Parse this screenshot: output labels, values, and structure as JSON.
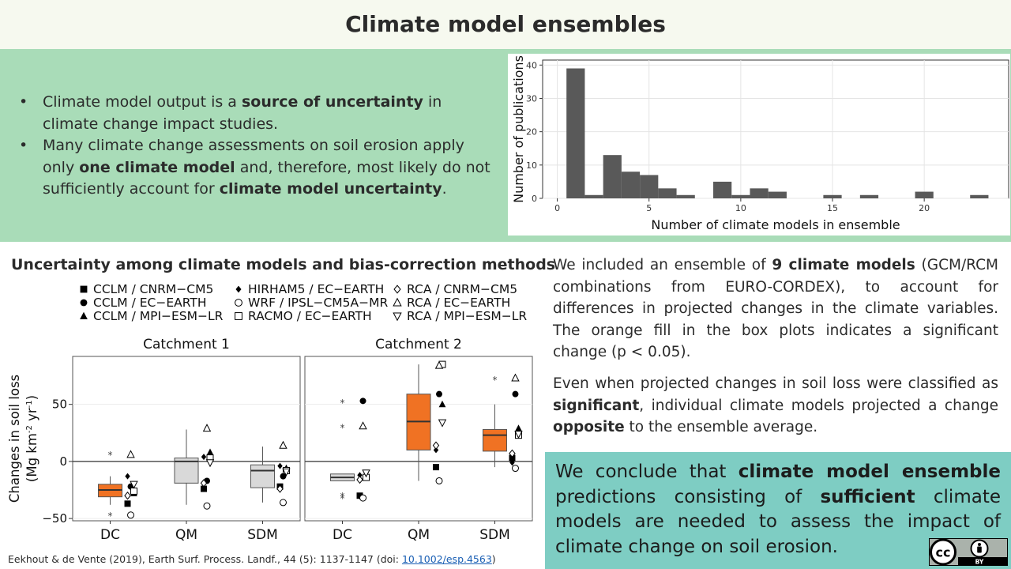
{
  "slide": {
    "title": "Climate model ensembles"
  },
  "intro": {
    "bullet1": [
      {
        "t": "Climate model output is a ",
        "b": false
      },
      {
        "t": "source of uncertainty",
        "b": true
      },
      {
        "t": " in climate change impact studies.",
        "b": false
      }
    ],
    "bullet2": [
      {
        "t": "Many climate change assessments on soil erosion apply only ",
        "b": false
      },
      {
        "t": "one climate model",
        "b": true
      },
      {
        "t": " and, therefore, most likely do not sufficiently account for ",
        "b": false
      },
      {
        "t": "climate model uncertainty",
        "b": true
      },
      {
        "t": ".",
        "b": false
      }
    ]
  },
  "section_title": "Uncertainty among climate models and bias-correction methods",
  "right_text": {
    "p1": [
      {
        "t": "We included an ensemble of ",
        "b": false
      },
      {
        "t": "9 climate models",
        "b": true
      },
      {
        "t": " (GCM/RCM combinations from EURO-CORDEX), to account for differences in projected changes in the climate variables. The orange fill in the box plots indicates a significant change (p < 0.05).",
        "b": false
      }
    ],
    "p2": [
      {
        "t": "Even when projected changes in soil loss were classified as ",
        "b": false
      },
      {
        "t": "significant",
        "b": true
      },
      {
        "t": ", individual climate models projected a change ",
        "b": false
      },
      {
        "t": "opposite",
        "b": true
      },
      {
        "t": " to the ensemble average.",
        "b": false
      }
    ]
  },
  "conclusion": [
    {
      "t": "We conclude that ",
      "b": false
    },
    {
      "t": "climate model ensemble",
      "b": true
    },
    {
      "t": " predictions consisting of ",
      "b": false
    },
    {
      "t": "sufficient",
      "b": true
    },
    {
      "t": " climate models are needed to assess the impact of climate change on soil erosion.",
      "b": false
    }
  ],
  "citation": {
    "text": "Eekhout & de Vente (2019), Earth Surf. Process. Landf., 44 (5): 1137-1147 (doi: ",
    "doi": "10.1002/esp.4563",
    "close": ")"
  },
  "license": {
    "cc": "cc",
    "by": "BY"
  },
  "colors": {
    "accent": "#f07223",
    "bar": "#595959",
    "green": "#a9dcb8",
    "teal": "#7ecdc3"
  },
  "chart_data": [
    {
      "type": "bar",
      "xlabel": "Number of climate models in ensemble",
      "ylabel": "Number of publications",
      "xlim": [
        0,
        24
      ],
      "ylim": [
        0,
        40
      ],
      "xticks": [
        0,
        5,
        10,
        15,
        20
      ],
      "yticks": [
        0,
        10,
        20,
        30,
        40
      ],
      "bins": [
        {
          "x": 1,
          "count": 39
        },
        {
          "x": 2,
          "count": 1
        },
        {
          "x": 3,
          "count": 13
        },
        {
          "x": 4,
          "count": 8
        },
        {
          "x": 5,
          "count": 7
        },
        {
          "x": 6,
          "count": 3
        },
        {
          "x": 7,
          "count": 1
        },
        {
          "x": 9,
          "count": 5
        },
        {
          "x": 10,
          "count": 1
        },
        {
          "x": 11,
          "count": 3
        },
        {
          "x": 12,
          "count": 2
        },
        {
          "x": 15,
          "count": 1
        },
        {
          "x": 17,
          "count": 1
        },
        {
          "x": 20,
          "count": 2
        },
        {
          "x": 23,
          "count": 1
        }
      ]
    },
    {
      "type": "box",
      "ylabel": "Changes in soil loss",
      "ylabel_units": [
        "(Mg km",
        "-2",
        " yr",
        "-1",
        ")"
      ],
      "ylim": [
        -52,
        92
      ],
      "yticks": [
        -50,
        0,
        50
      ],
      "panels": [
        "Catchment 1",
        "Catchment 2"
      ],
      "categories": [
        "DC",
        "QM",
        "SDM"
      ],
      "legend_columns": [
        [
          {
            "m": "sq_f",
            "t": "CCLM / CNRM−CM5"
          },
          {
            "m": "ci_f",
            "t": "CCLM / EC−EARTH"
          },
          {
            "m": "tr_f",
            "t": "CCLM / MPI−ESM−LR"
          }
        ],
        [
          {
            "m": "di_f",
            "t": "HIRHAM5 / EC−EARTH"
          },
          {
            "m": "ci_o",
            "t": "WRF / IPSL−CM5A−MR"
          },
          {
            "m": "sq_o",
            "t": "RACMO / EC−EARTH"
          }
        ],
        [
          {
            "m": "di_o",
            "t": "RCA / CNRM−CM5"
          },
          {
            "m": "tr_o",
            "t": "RCA / EC−EARTH"
          },
          {
            "m": "tv_o",
            "t": "RCA / MPI−ESM−LR"
          }
        ]
      ],
      "boxes": [
        {
          "panel": 0,
          "cat": 0,
          "q1": -31,
          "med": -25,
          "q3": -20,
          "lo": -38,
          "hi": -13,
          "sig": true,
          "outliers": [
            6,
            -47
          ],
          "points": [
            [
              "sq_f",
              -37
            ],
            [
              "ci_f",
              -22
            ],
            [
              "tr_f",
              -28
            ],
            [
              "di_f",
              -13
            ],
            [
              "ci_o",
              -47
            ],
            [
              "sq_o",
              -26
            ],
            [
              "di_o",
              -30
            ],
            [
              "tr_o",
              6
            ],
            [
              "tv_o",
              -20
            ]
          ]
        },
        {
          "panel": 0,
          "cat": 1,
          "q1": -19,
          "med": 0,
          "q3": 3,
          "lo": -38,
          "hi": 28,
          "sig": false,
          "outliers": [],
          "points": [
            [
              "sq_f",
              -24
            ],
            [
              "ci_f",
              -17
            ],
            [
              "tr_f",
              8
            ],
            [
              "di_f",
              4
            ],
            [
              "ci_o",
              -39
            ],
            [
              "sq_o",
              3
            ],
            [
              "di_o",
              -19
            ],
            [
              "tr_o",
              29
            ],
            [
              "tv_o",
              -1
            ]
          ]
        },
        {
          "panel": 0,
          "cat": 2,
          "q1": -23,
          "med": -8,
          "q3": -3,
          "lo": -36,
          "hi": 13,
          "sig": false,
          "outliers": [],
          "points": [
            [
              "sq_f",
              -22
            ],
            [
              "ci_f",
              -13
            ],
            [
              "tr_f",
              -6
            ],
            [
              "di_f",
              -4
            ],
            [
              "ci_o",
              -36
            ],
            [
              "sq_o",
              -8
            ],
            [
              "di_o",
              -24
            ],
            [
              "tr_o",
              14
            ],
            [
              "tv_o",
              -9
            ]
          ]
        },
        {
          "panel": 1,
          "cat": 0,
          "q1": -17,
          "med": -14,
          "q3": -11,
          "lo": -17,
          "hi": -11,
          "sig": false,
          "outliers": [
            52,
            30,
            -30,
            -32
          ],
          "points": [
            [
              "sq_f",
              -30
            ],
            [
              "ci_f",
              53
            ],
            [
              "tr_f",
              -12
            ],
            [
              "di_f",
              -12
            ],
            [
              "ci_o",
              -32
            ],
            [
              "sq_o",
              -14
            ],
            [
              "di_o",
              -16
            ],
            [
              "tr_o",
              31
            ],
            [
              "tv_o",
              -10
            ]
          ]
        },
        {
          "panel": 1,
          "cat": 1,
          "q1": 10,
          "med": 35,
          "q3": 59,
          "lo": -17,
          "hi": 85,
          "sig": true,
          "outliers": [],
          "points": [
            [
              "sq_f",
              -5
            ],
            [
              "ci_f",
              59
            ],
            [
              "tr_f",
              50
            ],
            [
              "di_f",
              10
            ],
            [
              "ci_o",
              -17
            ],
            [
              "sq_o",
              85
            ],
            [
              "di_o",
              14
            ],
            [
              "tr_o",
              84
            ],
            [
              "tv_o",
              34
            ]
          ]
        },
        {
          "panel": 1,
          "cat": 2,
          "q1": 9,
          "med": 23,
          "q3": 28,
          "lo": -5,
          "hi": 50,
          "sig": true,
          "outliers": [
            72
          ],
          "points": [
            [
              "sq_f",
              3
            ],
            [
              "ci_f",
              59
            ],
            [
              "tr_f",
              29
            ],
            [
              "di_f",
              -1
            ],
            [
              "ci_o",
              -6
            ],
            [
              "sq_o",
              23
            ],
            [
              "di_o",
              7
            ],
            [
              "tr_o",
              73
            ],
            [
              "tv_o",
              24
            ]
          ]
        }
      ]
    }
  ]
}
